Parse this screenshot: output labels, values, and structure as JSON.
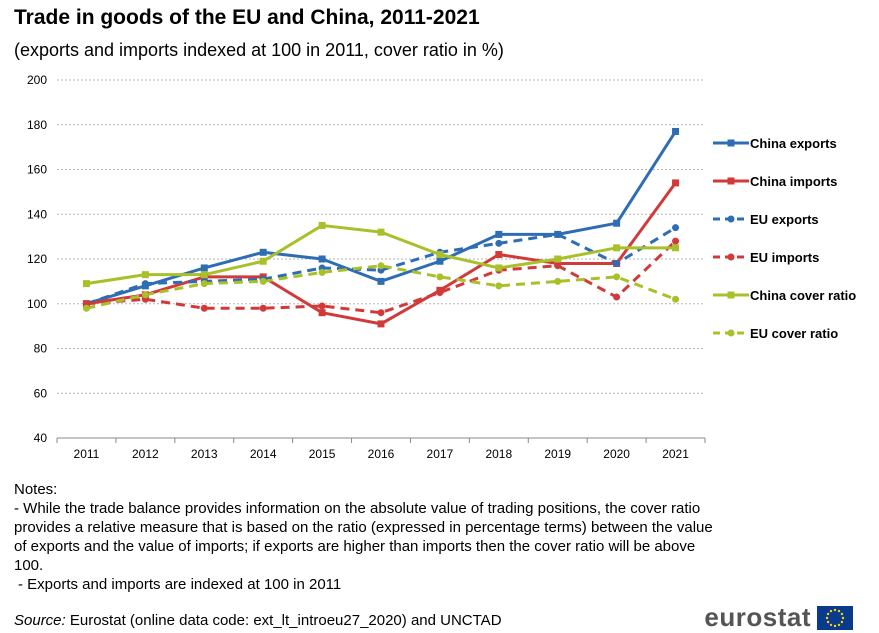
{
  "header": {
    "title": "Trade in goods of the EU and China, 2011-2021",
    "subtitle": "(exports and imports indexed at 100 in 2011, cover ratio in %)"
  },
  "chart_data": {
    "type": "line",
    "categories": [
      "2011",
      "2012",
      "2013",
      "2014",
      "2015",
      "2016",
      "2017",
      "2018",
      "2019",
      "2020",
      "2021"
    ],
    "ylim": [
      40,
      200
    ],
    "yticks": [
      40,
      60,
      80,
      100,
      120,
      140,
      160,
      180,
      200
    ],
    "grid": "horizontal dashed",
    "legend_position": "right",
    "series": [
      {
        "name": "China exports",
        "color": "#2e6db4",
        "style": "solid",
        "values": [
          100,
          108,
          116,
          123,
          120,
          110,
          119,
          131,
          131,
          136,
          177
        ]
      },
      {
        "name": "China imports",
        "color": "#d23a3a",
        "style": "solid",
        "values": [
          100,
          104,
          112,
          112,
          96,
          91,
          106,
          122,
          118,
          118,
          154
        ]
      },
      {
        "name": "EU exports",
        "color": "#2e6db4",
        "style": "dashed",
        "values": [
          100,
          109,
          110,
          111,
          116,
          115,
          123,
          127,
          131,
          118,
          134
        ]
      },
      {
        "name": "EU imports",
        "color": "#d23a3a",
        "style": "dashed",
        "values": [
          100,
          102,
          98,
          98,
          99,
          96,
          105,
          115,
          117,
          103,
          128
        ]
      },
      {
        "name": "China cover ratio",
        "color": "#a9c02a",
        "style": "solid",
        "values": [
          109,
          113,
          113,
          119,
          135,
          132,
          122,
          116,
          120,
          125,
          125
        ]
      },
      {
        "name": "EU cover ratio",
        "color": "#a9c02a",
        "style": "dashed",
        "values": [
          98,
          104,
          109,
          110,
          114,
          117,
          112,
          108,
          110,
          112,
          102
        ]
      }
    ]
  },
  "notes": {
    "heading": "Notes:",
    "line1": "- While the trade balance provides information on the absolute value of trading positions, the cover ratio provides a relative measure that is based on the ratio (expressed in percentage terms) between the value of exports and the value of imports; if exports are higher than imports then the cover ratio will be above 100.",
    "line2": " - Exports and imports are indexed at 100 in 2011"
  },
  "source": {
    "label": "Source:",
    "text": "Eurostat (online data code: ext_lt_introeu27_2020) and UNCTAD"
  },
  "brand": {
    "name": "eurostat",
    "flag_color": "#0a3a8c",
    "star_color": "#ffd200",
    "flag_icon": "eu-flag-icon"
  }
}
